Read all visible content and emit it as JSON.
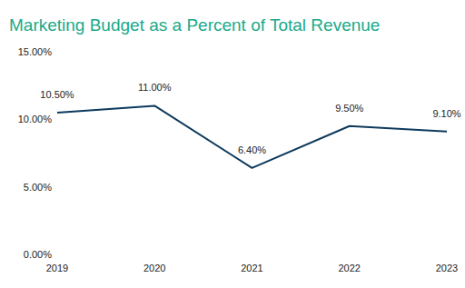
{
  "chart_data": {
    "type": "line",
    "title": "Marketing Budget as a Percent of Total Revenue",
    "categories": [
      "2019",
      "2020",
      "2021",
      "2022",
      "2023"
    ],
    "values": [
      10.5,
      11,
      6.4,
      9.5,
      9.1
    ],
    "value_labels": [
      "10.50%",
      "11.00%",
      "6.40%",
      "9.50%",
      "9.10%"
    ],
    "color": "#0e3a5d",
    "ylim": [
      0,
      15
    ],
    "yticks": [
      {
        "value": 0,
        "label": "0.00%"
      },
      {
        "value": 5,
        "label": "5.00%"
      },
      {
        "value": 10,
        "label": "10.00%"
      },
      {
        "value": 15,
        "label": "15.00%"
      }
    ],
    "grid": false,
    "data_labels": true
  }
}
